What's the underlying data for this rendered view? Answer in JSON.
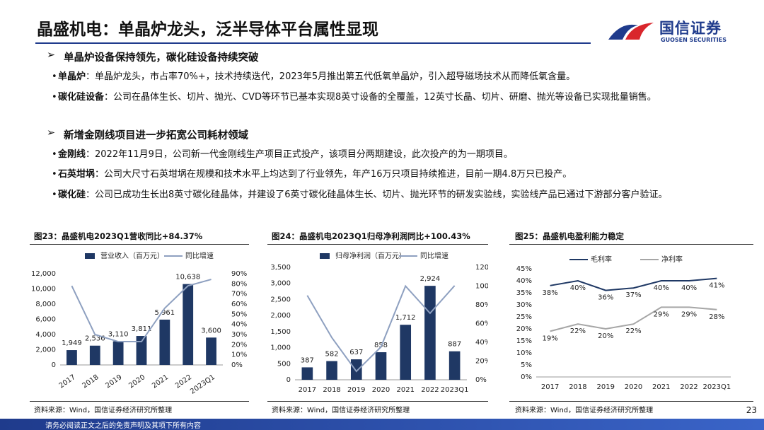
{
  "header": {
    "title": "晶盛机电：单晶炉龙头，泛半导体平台属性显现",
    "logo_cn": "国信证券",
    "logo_en": "GUOSEN SECURITIES"
  },
  "sections": [
    {
      "heading": "单晶炉设备保持领先，碳化硅设备持续突破",
      "bullets": [
        {
          "label": "单晶炉",
          "text": "：单晶炉龙头，市占率70%+，技术持续迭代，2023年5月推出第五代低氧单晶炉，引入超导磁场技术从而降低氧含量。"
        },
        {
          "label": "碳化硅设备",
          "text": "：公司在晶体生长、切片、抛光、CVD等环节已基本实现8英寸设备的全覆盖，12英寸长晶、切片、研磨、抛光等设备已实现批量销售。"
        }
      ]
    },
    {
      "heading": "新增金刚线项目进一步拓宽公司耗材领域",
      "bullets": [
        {
          "label": "金刚线",
          "text": "：2022年11月9日，公司新一代金刚线生产项目正式投产，该项目分两期建设，此次投产的为一期项目。"
        },
        {
          "label": "石英坩埚",
          "text": "：公司大尺寸石英坩埚在规模和技术水平上均达到了行业领先，年产16万只项目持续推进，目前一期4.8万只已投产。"
        },
        {
          "label": "碳化硅",
          "text": "：公司已成功生长出8英寸碳化硅晶体，并建设了6英寸碳化硅晶体生长、切片、抛光环节的研发实验线，实验线产品已通过下游部分客户验证。"
        }
      ]
    }
  ],
  "chart_data": [
    {
      "type": "combo",
      "title": "图23：晶盛机电2023Q1营收同比+84.37%",
      "source": "资料来源：Wind，国信证券经济研究所整理",
      "categories": [
        "2017",
        "2018",
        "2019",
        "2020",
        "2021",
        "2022",
        "2023Q1"
      ],
      "series": [
        {
          "name": "营业收入（百万元）",
          "kind": "bar",
          "color": "#1f3864",
          "values": [
            1949,
            2536,
            3110,
            3811,
            5961,
            10638,
            3600
          ],
          "value_labels": [
            "1,949",
            "2,536",
            "3,110",
            "3,811",
            "5,961",
            "10,638",
            "3,600"
          ]
        },
        {
          "name": "同比增速",
          "kind": "line",
          "axis": "y2",
          "color": "#8ea0c0",
          "values": [
            78,
            30,
            23,
            23,
            56,
            78,
            84.37
          ]
        }
      ],
      "ylim": [
        0,
        12000
      ],
      "yticks": [
        0,
        {
          "value": 2000,
          "label": "2,000"
        },
        {
          "value": 4000,
          "label": "4,000"
        },
        {
          "value": 6000,
          "label": "6,000"
        },
        {
          "value": 8000,
          "label": "8,000"
        },
        {
          "value": 10000,
          "label": "10,000"
        },
        {
          "value": 12000,
          "label": "12,000"
        }
      ],
      "y2lim": [
        0,
        90
      ],
      "y2ticks": [
        {
          "value": 0,
          "label": "0%"
        },
        {
          "value": 10,
          "label": "10%"
        },
        {
          "value": 20,
          "label": "20%"
        },
        {
          "value": 30,
          "label": "30%"
        },
        {
          "value": 40,
          "label": "40%"
        },
        {
          "value": 50,
          "label": "50%"
        },
        {
          "value": 60,
          "label": "60%"
        },
        {
          "value": 70,
          "label": "70%"
        },
        {
          "value": 80,
          "label": "80%"
        },
        {
          "value": 90,
          "label": "90%"
        }
      ],
      "grid": false
    },
    {
      "type": "combo",
      "title": "图24：晶盛机电2023Q1归母净利润同比+100.43%",
      "source": "资料来源：Wind，国信证券经济研究所整理",
      "categories": [
        "2017",
        "2018",
        "2019",
        "2020",
        "2021",
        "2022",
        "2023Q1"
      ],
      "series": [
        {
          "name": "归母净利润（百万元）",
          "kind": "bar",
          "color": "#1f3864",
          "values": [
            387,
            582,
            637,
            858,
            1712,
            2924,
            887
          ],
          "value_labels": [
            "387",
            "582",
            "637",
            "858",
            "1,712",
            "2,924",
            "887"
          ]
        },
        {
          "name": "同比增速",
          "kind": "line",
          "axis": "y2",
          "color": "#8ea0c0",
          "values": [
            90,
            45,
            9,
            35,
            100,
            71,
            100.43
          ]
        }
      ],
      "ylim": [
        0,
        3500
      ],
      "yticks": [
        0,
        500,
        {
          "value": 1000,
          "label": "1,000"
        },
        {
          "value": 1500,
          "label": "1,500"
        },
        {
          "value": 2000,
          "label": "2,000"
        },
        {
          "value": 2500,
          "label": "2,500"
        },
        {
          "value": 3000,
          "label": "3,000"
        },
        {
          "value": 3500,
          "label": "3,500"
        }
      ],
      "y2lim": [
        0,
        120
      ],
      "y2ticks": [
        {
          "value": 0,
          "label": "0%"
        },
        {
          "value": 20,
          "label": "20%"
        },
        {
          "value": 40,
          "label": "40%"
        },
        {
          "value": 60,
          "label": "60%"
        },
        {
          "value": 80,
          "label": "80%"
        },
        {
          "value": 100,
          "label": "100%"
        },
        {
          "value": 120,
          "label": "120%"
        }
      ],
      "grid": false
    },
    {
      "type": "line",
      "title": "图25：晶盛机电盈利能力稳定",
      "source": "资料来源：Wind，国信证券经济研究所整理",
      "categories": [
        "2017",
        "2018",
        "2019",
        "2020",
        "2021",
        "2022",
        "2023Q1"
      ],
      "series": [
        {
          "name": "毛利率",
          "kind": "line",
          "color": "#1f3864",
          "values": [
            38,
            40,
            36,
            37,
            40,
            40,
            41
          ],
          "value_labels": [
            "38%",
            "40%",
            "36%",
            "37%",
            "40%",
            "40%",
            "41%"
          ]
        },
        {
          "name": "净利率",
          "kind": "line",
          "color": "#a6a6a6",
          "values": [
            19,
            22,
            20,
            22,
            29,
            29,
            28
          ],
          "value_labels": [
            "19%",
            "22%",
            "20%",
            "22%",
            "29%",
            "29%",
            "28%"
          ]
        }
      ],
      "ylim": [
        0,
        45
      ],
      "yticks": [
        {
          "value": 0,
          "label": "0%"
        },
        {
          "value": 5,
          "label": "5%"
        },
        {
          "value": 10,
          "label": "10%"
        },
        {
          "value": 15,
          "label": "15%"
        },
        {
          "value": 20,
          "label": "20%"
        },
        {
          "value": 25,
          "label": "25%"
        },
        {
          "value": 30,
          "label": "30%"
        },
        {
          "value": 35,
          "label": "35%"
        },
        {
          "value": 40,
          "label": "40%"
        },
        {
          "value": 45,
          "label": "45%"
        }
      ],
      "grid": false
    }
  ],
  "footer": {
    "disclaimer": "请务必阅读正文之后的免责声明及其项下所有内容",
    "page": 23
  }
}
